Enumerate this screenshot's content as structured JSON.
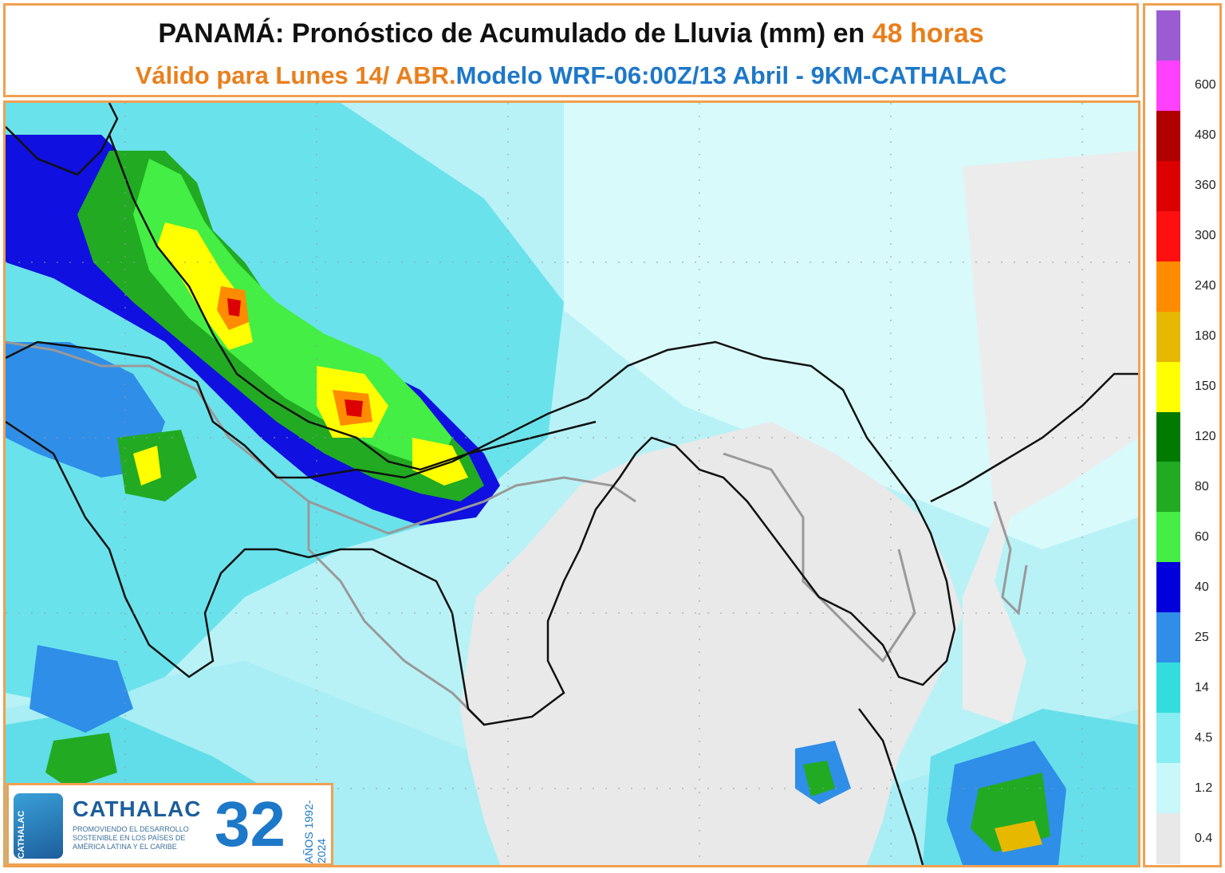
{
  "title": {
    "line1_main": "PANAMÁ: Pronóstico de Acumulado de Lluvia (mm) en ",
    "line1_highlight": "48 horas",
    "line2_orange": "Válido para Lunes 14/ ABR.",
    "line2_blue": "Modelo WRF-06:00Z/13 Abril - 9KM-CATHALAC"
  },
  "legend": {
    "unit": "mm",
    "levels": [
      {
        "label": "",
        "color": "#9a5cd0"
      },
      {
        "label": "600",
        "color": "#ff40ff"
      },
      {
        "label": "480",
        "color": "#b00000"
      },
      {
        "label": "360",
        "color": "#dd0000"
      },
      {
        "label": "300",
        "color": "#ff1010"
      },
      {
        "label": "240",
        "color": "#ff8c00"
      },
      {
        "label": "180",
        "color": "#e6b800"
      },
      {
        "label": "150",
        "color": "#ffff00"
      },
      {
        "label": "120",
        "color": "#007a00"
      },
      {
        "label": "80",
        "color": "#22aa22"
      },
      {
        "label": "60",
        "color": "#44ee44"
      },
      {
        "label": "40",
        "color": "#0000dd"
      },
      {
        "label": "25",
        "color": "#2f8ee8"
      },
      {
        "label": "14",
        "color": "#33dddd"
      },
      {
        "label": "4.5",
        "color": "#88eef4"
      },
      {
        "label": "1.2",
        "color": "#c8f8fa"
      },
      {
        "label": "0.4",
        "color": "#e8e8e8"
      }
    ]
  },
  "logo": {
    "name": "CATHALAC",
    "vertical_text": "CATHALAC",
    "tagline": "PROMOVIENDO EL DESARROLLO SOSTENIBLE EN LOS PAÍSES DE AMÉRICA LATINA Y EL CARIBE",
    "anniversary": "32",
    "years": "AÑOS 1992-2024"
  }
}
